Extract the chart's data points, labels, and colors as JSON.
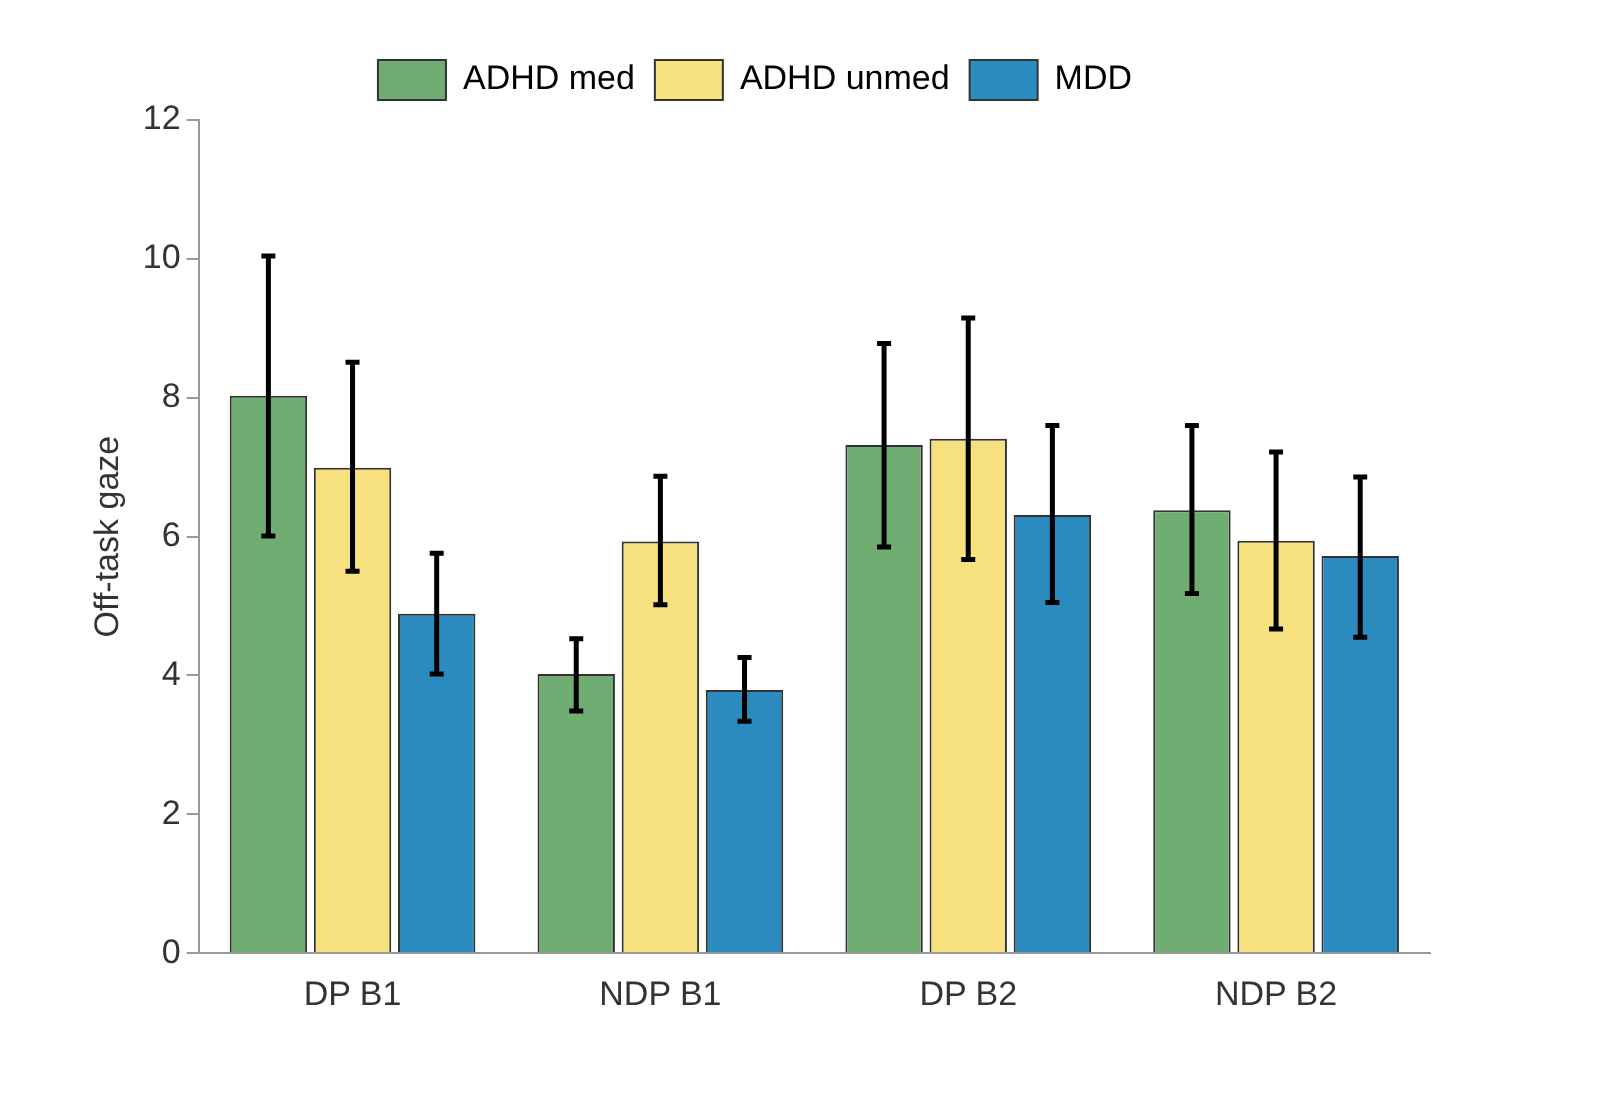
{
  "chart_data": {
    "type": "bar",
    "ylabel": "Off-task gaze",
    "categories": [
      "DP B1",
      "NDP B1",
      "DP B2",
      "NDP B2"
    ],
    "series": [
      {
        "name": "ADHD med",
        "color": "#70ad72",
        "values": [
          8.03,
          4.02,
          7.32,
          6.38
        ],
        "errors": [
          [
            6.01,
            10.04
          ],
          [
            3.49,
            4.53
          ],
          [
            5.85,
            8.78
          ],
          [
            5.18,
            7.6
          ]
        ]
      },
      {
        "name": "ADHD unmed",
        "color": "#f7e07e",
        "values": [
          6.99,
          5.93,
          7.41,
          5.94
        ],
        "errors": [
          [
            5.5,
            8.51
          ],
          [
            5.02,
            6.87
          ],
          [
            5.67,
            9.15
          ],
          [
            4.67,
            7.22
          ]
        ]
      },
      {
        "name": "MDD",
        "color": "#2b8bbf",
        "values": [
          4.89,
          3.79,
          6.31,
          5.72
        ],
        "errors": [
          [
            4.02,
            5.76
          ],
          [
            3.34,
            4.26
          ],
          [
            5.05,
            7.6
          ],
          [
            4.55,
            6.86
          ]
        ]
      }
    ],
    "ylim": [
      0,
      12
    ],
    "yticks": [
      0,
      2,
      4,
      6,
      8,
      10,
      12
    ],
    "grid": false,
    "legend": "top"
  }
}
